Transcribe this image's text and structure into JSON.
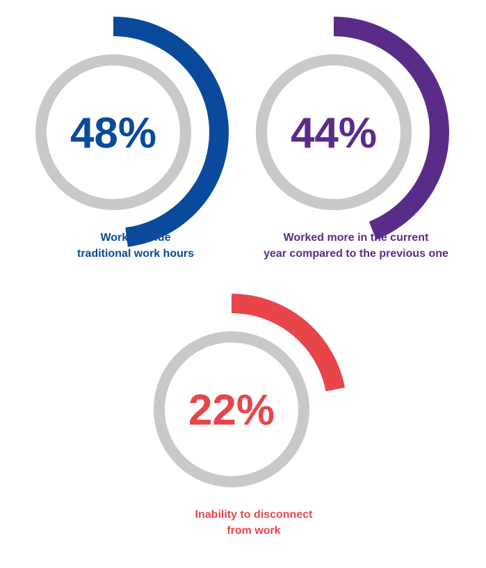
{
  "chart_data": [
    {
      "type": "donut",
      "value": 48,
      "label": "48%",
      "caption": [
        "Work outside",
        "traditional work hours"
      ],
      "color": "#0a4a9c",
      "track_color": "#c9c9c9"
    },
    {
      "type": "donut",
      "value": 44,
      "label": "44%",
      "caption": [
        "Worked more in the current",
        "year compared to the previous one"
      ],
      "color": "#5a2c8a",
      "track_color": "#c9c9c9"
    },
    {
      "type": "donut",
      "value": 22,
      "label": "22%",
      "caption": [
        "Inability to disconnect",
        "from work"
      ],
      "color": "#e8454b",
      "track_color": "#c9c9c9"
    }
  ]
}
